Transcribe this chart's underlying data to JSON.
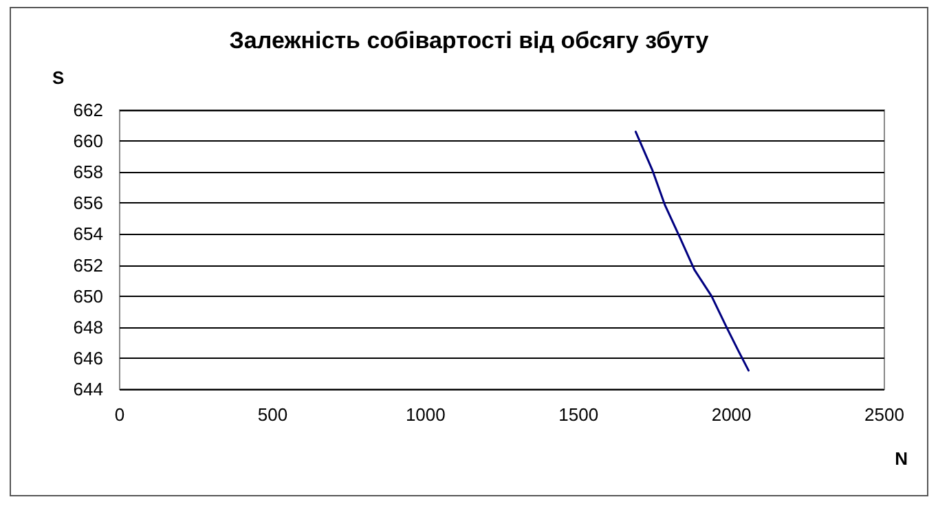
{
  "chart_data": {
    "type": "line",
    "title": "Залежність собівартості від обсягу збуту",
    "xlabel": "N",
    "ylabel": "S",
    "series": [
      {
        "color": "#000080",
        "x": [
          1687,
          1742,
          1782,
          1831,
          1879,
          1902,
          1935,
          1984,
          2022,
          2056
        ],
        "values": [
          660.6,
          658.1,
          655.9,
          653.8,
          651.7,
          651.0,
          650.0,
          648.0,
          646.5,
          645.2
        ]
      }
    ],
    "xlim": [
      0,
      2500
    ],
    "xticks": [
      0,
      500,
      1000,
      1500,
      2000,
      2500
    ],
    "ylim": [
      644,
      662
    ],
    "yticks": [
      644,
      646,
      648,
      650,
      652,
      654,
      656,
      658,
      660,
      662
    ],
    "grid": "y",
    "marker": "none",
    "line_style": "solid"
  }
}
